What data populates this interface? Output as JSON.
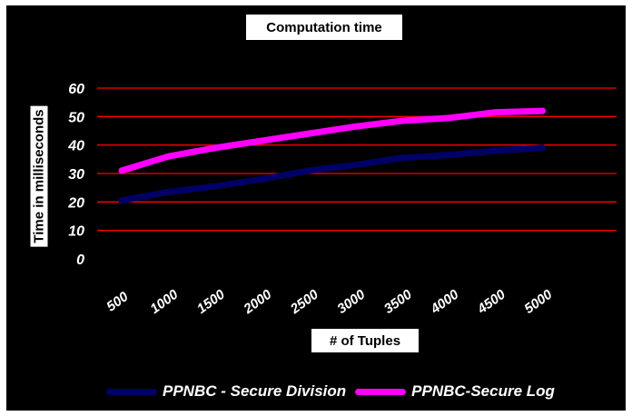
{
  "chart_data": {
    "type": "line",
    "title": "Computation time",
    "xlabel": "# of Tuples",
    "ylabel": "Time in milliseconds",
    "categories": [
      "500",
      "1000",
      "1500",
      "2000",
      "2500",
      "3000",
      "3500",
      "4000",
      "4500",
      "5000"
    ],
    "yticks": [
      "0",
      "10",
      "20",
      "30",
      "40",
      "50",
      "60"
    ],
    "ylim": [
      0,
      60
    ],
    "grid": true,
    "legend_position": "bottom",
    "series": [
      {
        "name": "PPNBC - Secure Division",
        "color": "#000066",
        "values": [
          20.5,
          23.5,
          25.5,
          28,
          31,
          33,
          35.5,
          36.5,
          38,
          39
        ]
      },
      {
        "name": "PPNBC-Secure Log",
        "color": "#ff00ff",
        "values": [
          31,
          36,
          39,
          41.5,
          44,
          46.5,
          48.5,
          49.5,
          51.5,
          52
        ]
      }
    ],
    "colors": {
      "background": "#000000",
      "gridline": "#ff0000",
      "text": "#ffffff"
    }
  }
}
